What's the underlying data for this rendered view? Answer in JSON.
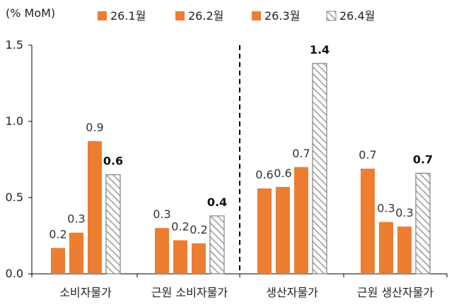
{
  "chart_data": {
    "type": "bar",
    "unit_label": "(% MoM)",
    "categories": [
      "소비자물가",
      "근원 소비자물가",
      "생산자물가",
      "근원 생산자물가"
    ],
    "series": [
      {
        "name": "26.1월",
        "values": [
          0.17,
          0.3,
          0.56,
          0.69
        ],
        "labels": [
          "0.2",
          "0.3",
          "0.6",
          "0.7"
        ],
        "style": "solid"
      },
      {
        "name": "26.2월",
        "values": [
          0.27,
          0.22,
          0.57,
          0.34
        ],
        "labels": [
          "0.3",
          "0.2",
          "0.6",
          "0.3"
        ],
        "style": "solid"
      },
      {
        "name": "26.3월",
        "values": [
          0.87,
          0.2,
          0.7,
          0.31
        ],
        "labels": [
          "0.9",
          "0.2",
          "0.7",
          "0.3"
        ],
        "style": "solid"
      },
      {
        "name": "26.4월",
        "values": [
          0.65,
          0.38,
          1.38,
          0.66
        ],
        "labels": [
          "0.6",
          "0.4",
          "1.4",
          "0.7"
        ],
        "style": "hatched"
      }
    ],
    "yticks": [
      "0.0",
      "0.5",
      "1.0",
      "1.5"
    ],
    "ylim": [
      0,
      1.5
    ],
    "grid": false,
    "legend_position": "top",
    "divider": "dashed vertical line between 근원 소비자물가 and 생산자물가",
    "colors": {
      "solid": "#ED7D31",
      "hatch_stroke": "#A6A6A6",
      "axis": "#000000"
    }
  }
}
